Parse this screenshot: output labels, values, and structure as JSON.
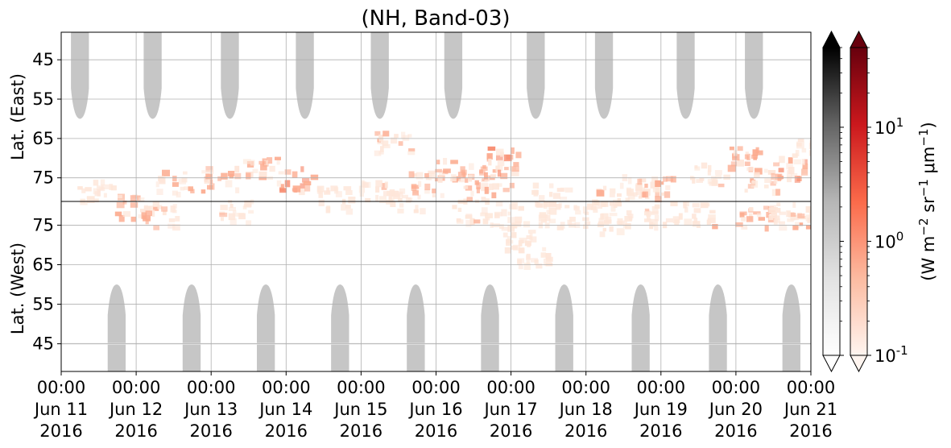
{
  "chart_data": {
    "type": "heatmap",
    "title": "(NH, Band-03)",
    "ylabel_top": "Lat. (East)",
    "ylabel_bottom": "Lat. (West)",
    "x_tick_labels": [
      [
        "00:00",
        "Jun 11",
        "2016"
      ],
      [
        "00:00",
        "Jun 12",
        "2016"
      ],
      [
        "00:00",
        "Jun 13",
        "2016"
      ],
      [
        "00:00",
        "Jun 14",
        "2016"
      ],
      [
        "00:00",
        "Jun 15",
        "2016"
      ],
      [
        "00:00",
        "Jun 16",
        "2016"
      ],
      [
        "00:00",
        "Jun 17",
        "2016"
      ],
      [
        "00:00",
        "Jun 18",
        "2016"
      ],
      [
        "00:00",
        "Jun 19",
        "2016"
      ],
      [
        "00:00",
        "Jun 20",
        "2016"
      ],
      [
        "00:00",
        "Jun 21",
        "2016"
      ]
    ],
    "x_range": [
      "2016-06-11 00:00",
      "2016-06-21 00:00"
    ],
    "y_top_ticks": [
      "45",
      "55",
      "65",
      "75"
    ],
    "y_bottom_ticks": [
      "75",
      "65",
      "55",
      "45"
    ],
    "y_top_range": [
      38,
      81
    ],
    "y_bottom_range": [
      81,
      38
    ],
    "grid": true,
    "colorbar_gray": {
      "cmap": "Greys",
      "extend": "both"
    },
    "colorbar_red": {
      "cmap": "Reds",
      "scale": "log",
      "range": [
        0.1,
        50
      ],
      "tick_labels": [
        "10",
        "10",
        "10"
      ],
      "tick_exponents": [
        "-1",
        "0",
        "1"
      ],
      "tick_values": [
        0.1,
        1,
        10
      ],
      "label_parts": [
        "(W m",
        "−2",
        " sr",
        "−1",
        " μm",
        "−1",
        ")"
      ],
      "extend": "both"
    },
    "colors": {
      "gray_patch": "#c6c6c6",
      "red_low": "#fee6d9",
      "red_mid": "#fcab8f",
      "red_high": "#f7876a",
      "gridline": "#b0b0b0"
    },
    "gray_night_regions": {
      "top_day_fraction_centers": [
        0.25,
        0.22,
        0.25,
        0.25,
        0.25,
        0.23,
        0.33,
        0.24,
        0.33,
        0.24
      ],
      "bottom_day_fraction_centers": [
        0.74,
        0.74,
        0.73,
        0.72,
        0.73,
        0.72,
        0.71,
        0.73,
        0.76,
        0.74
      ]
    },
    "emission_clusters": [
      {
        "day": 0.45,
        "lat": 78,
        "side": "east",
        "intensity": 0.4
      },
      {
        "day": 0.95,
        "lat": 80,
        "side": "west",
        "intensity": 0.6
      },
      {
        "day": 1.3,
        "lat": 78,
        "side": "west",
        "intensity": 0.5
      },
      {
        "day": 1.5,
        "lat": 76,
        "side": "east",
        "intensity": 0.5
      },
      {
        "day": 2.1,
        "lat": 75,
        "side": "east",
        "intensity": 0.6
      },
      {
        "day": 2.3,
        "lat": 79,
        "side": "west",
        "intensity": 0.4
      },
      {
        "day": 2.65,
        "lat": 72,
        "side": "east",
        "intensity": 0.5
      },
      {
        "day": 3.1,
        "lat": 75,
        "side": "east",
        "intensity": 0.7
      },
      {
        "day": 3.6,
        "lat": 80,
        "side": "east",
        "intensity": 0.3
      },
      {
        "day": 4.2,
        "lat": 78,
        "side": "east",
        "intensity": 0.4
      },
      {
        "day": 4.4,
        "lat": 66,
        "side": "east",
        "intensity": 0.5
      },
      {
        "day": 4.55,
        "lat": 80,
        "side": "east",
        "intensity": 0.4
      },
      {
        "day": 4.85,
        "lat": 76,
        "side": "east",
        "intensity": 0.5
      },
      {
        "day": 5.2,
        "lat": 73,
        "side": "east",
        "intensity": 0.5
      },
      {
        "day": 5.45,
        "lat": 79,
        "side": "west",
        "intensity": 0.4
      },
      {
        "day": 5.6,
        "lat": 77,
        "side": "east",
        "intensity": 0.5
      },
      {
        "day": 5.75,
        "lat": 75,
        "side": "east",
        "intensity": 0.6
      },
      {
        "day": 5.85,
        "lat": 70,
        "side": "east",
        "intensity": 0.7
      },
      {
        "day": 5.95,
        "lat": 78,
        "side": "west",
        "intensity": 0.4
      },
      {
        "day": 6.1,
        "lat": 72,
        "side": "west",
        "intensity": 0.4
      },
      {
        "day": 6.25,
        "lat": 68,
        "side": "west",
        "intensity": 0.3
      },
      {
        "day": 6.5,
        "lat": 79,
        "side": "east",
        "intensity": 0.3
      },
      {
        "day": 6.6,
        "lat": 78,
        "side": "west",
        "intensity": 0.4
      },
      {
        "day": 7.0,
        "lat": 78,
        "side": "west",
        "intensity": 0.3
      },
      {
        "day": 7.3,
        "lat": 79,
        "side": "east",
        "intensity": 0.4
      },
      {
        "day": 7.4,
        "lat": 76,
        "side": "west",
        "intensity": 0.3
      },
      {
        "day": 7.7,
        "lat": 77,
        "side": "east",
        "intensity": 0.4
      },
      {
        "day": 7.9,
        "lat": 77,
        "side": "east",
        "intensity": 0.5
      },
      {
        "day": 8.0,
        "lat": 78,
        "side": "west",
        "intensity": 0.4
      },
      {
        "day": 8.45,
        "lat": 78,
        "side": "west",
        "intensity": 0.4
      },
      {
        "day": 8.6,
        "lat": 74,
        "side": "east",
        "intensity": 0.4
      },
      {
        "day": 9.1,
        "lat": 70,
        "side": "east",
        "intensity": 0.6
      },
      {
        "day": 9.2,
        "lat": 78,
        "side": "west",
        "intensity": 0.6
      },
      {
        "day": 9.35,
        "lat": 75,
        "side": "east",
        "intensity": 0.5
      },
      {
        "day": 9.65,
        "lat": 78,
        "side": "west",
        "intensity": 0.4
      },
      {
        "day": 9.7,
        "lat": 72,
        "side": "east",
        "intensity": 0.7
      },
      {
        "day": 9.9,
        "lat": 78,
        "side": "west",
        "intensity": 0.5
      },
      {
        "day": 9.95,
        "lat": 68,
        "side": "east",
        "intensity": 0.3
      }
    ]
  }
}
